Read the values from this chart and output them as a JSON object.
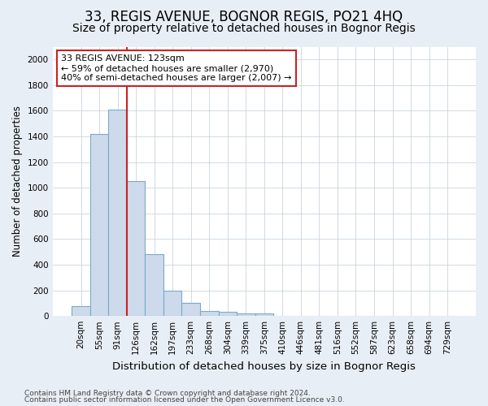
{
  "title": "33, REGIS AVENUE, BOGNOR REGIS, PO21 4HQ",
  "subtitle": "Size of property relative to detached houses in Bognor Regis",
  "xlabel": "Distribution of detached houses by size in Bognor Regis",
  "ylabel": "Number of detached properties",
  "footnote1": "Contains HM Land Registry data © Crown copyright and database right 2024.",
  "footnote2": "Contains public sector information licensed under the Open Government Licence v3.0.",
  "categories": [
    "20sqm",
    "55sqm",
    "91sqm",
    "126sqm",
    "162sqm",
    "197sqm",
    "233sqm",
    "268sqm",
    "304sqm",
    "339sqm",
    "375sqm",
    "410sqm",
    "446sqm",
    "481sqm",
    "516sqm",
    "552sqm",
    "587sqm",
    "623sqm",
    "658sqm",
    "694sqm",
    "729sqm"
  ],
  "values": [
    80,
    1420,
    1610,
    1050,
    480,
    200,
    105,
    40,
    30,
    20,
    18,
    0,
    0,
    0,
    0,
    0,
    0,
    0,
    0,
    0,
    0
  ],
  "bar_color": "#ccdaeb",
  "bar_edge_color": "#7aaac8",
  "vline_index": 3,
  "vline_color": "#cc2222",
  "annotation_line1": "33 REGIS AVENUE: 123sqm",
  "annotation_line2": "← 59% of detached houses are smaller (2,970)",
  "annotation_line3": "40% of semi-detached houses are larger (2,007) →",
  "ylim": [
    0,
    2100
  ],
  "yticks": [
    0,
    200,
    400,
    600,
    800,
    1000,
    1200,
    1400,
    1600,
    1800,
    2000
  ],
  "title_fontsize": 12,
  "subtitle_fontsize": 10,
  "xlabel_fontsize": 9.5,
  "ylabel_fontsize": 8.5,
  "tick_fontsize": 7.5,
  "ann_fontsize": 8,
  "bg_color": "#e8eef5",
  "plot_bg_color": "#ffffff",
  "grid_color": "#c0ccd8"
}
